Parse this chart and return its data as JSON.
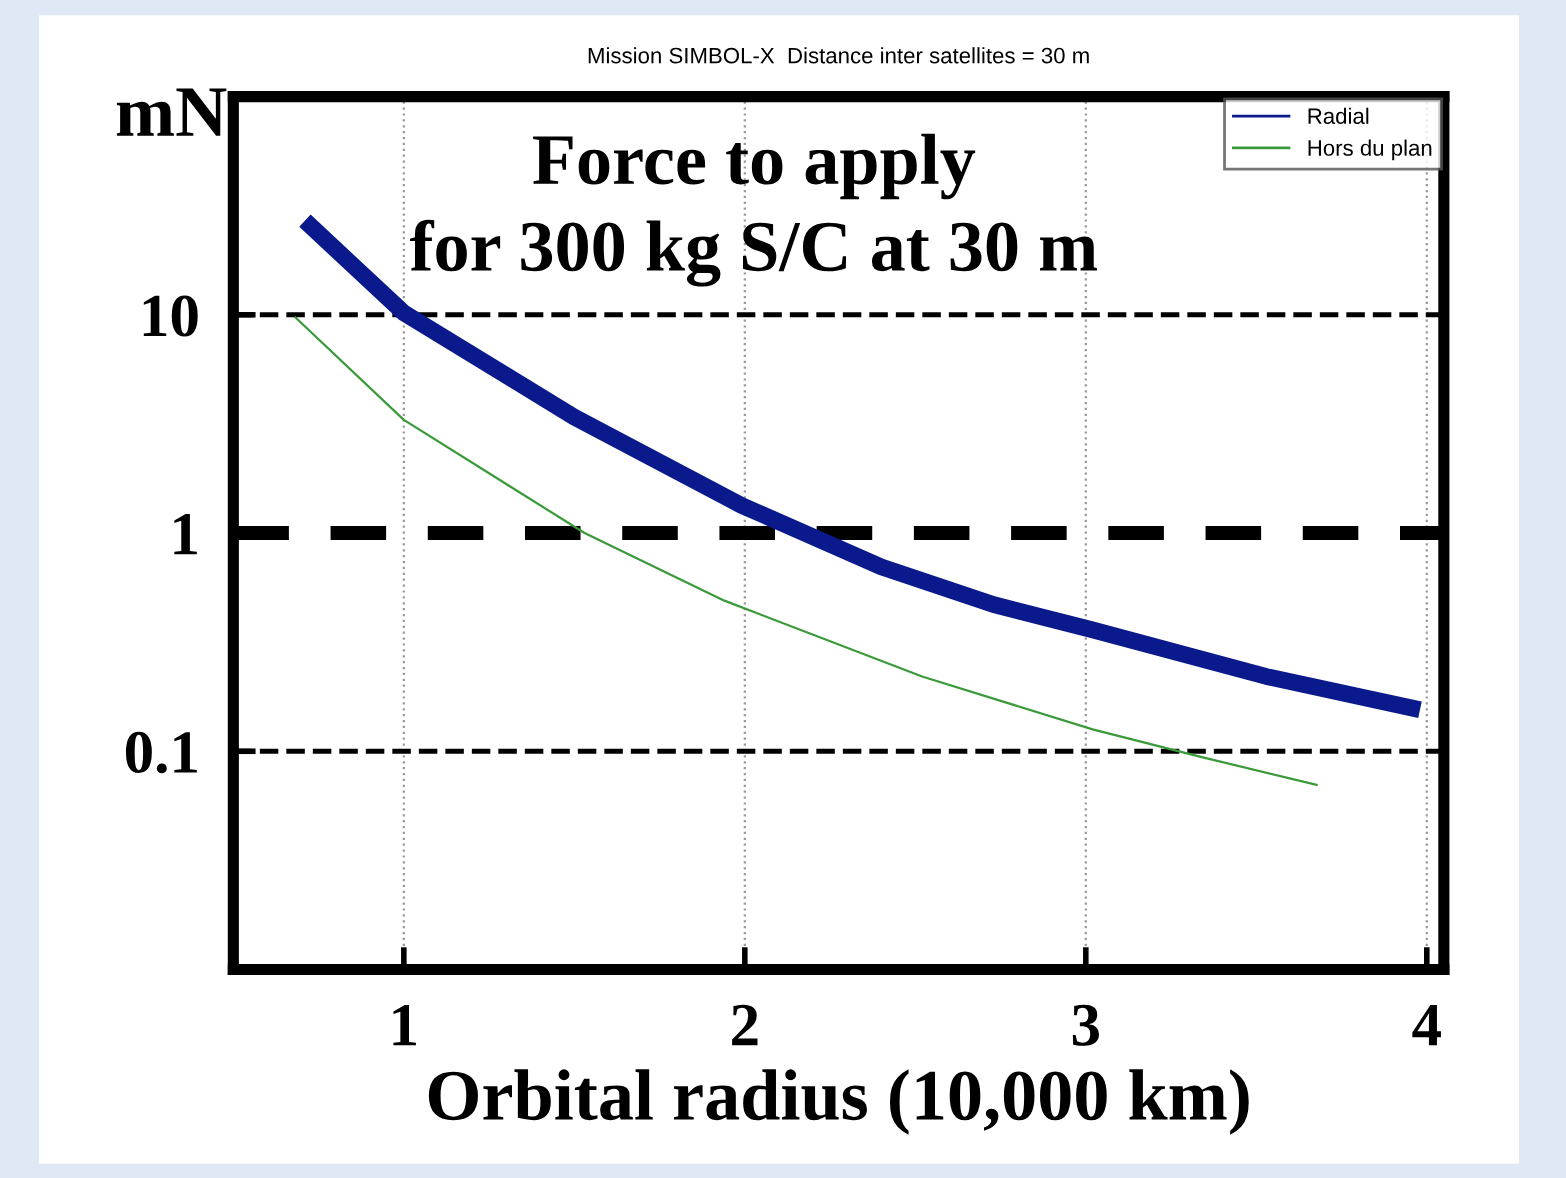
{
  "chart_data": {
    "type": "line",
    "title": "Mission SIMBOL-X  Distance inter satellites = 30 m",
    "xlabel": "Orbital radius (10,000 km)",
    "ylabel": "mN",
    "annotations": [
      "Force to apply\nfor 300 kg S/C at 30 m"
    ],
    "log": "y",
    "xlim": [
      0.5,
      4.05
    ],
    "xticks": [
      1,
      2,
      3,
      4
    ],
    "ylim": [
      0.01,
      100
    ],
    "yticks": [
      0.1,
      1,
      10
    ],
    "grid": "x",
    "legend": "top right",
    "line_style": "solid",
    "marker": "none",
    "ref_lines": [
      {
        "axis": "y",
        "value": 10,
        "line_style": "dashed",
        "color": "#000000"
      },
      {
        "axis": "y",
        "value": 1,
        "line_style": "dashed",
        "color": "#000000"
      },
      {
        "axis": "y",
        "value": 0.1,
        "line_style": "dashed",
        "color": "#000000"
      }
    ],
    "series": [
      {
        "name": "Radial",
        "color": "#0a1a8c",
        "x": [
          0.71,
          1.0,
          1.5,
          1.99,
          2.4,
          2.73,
          3.02,
          3.53,
          3.98
        ],
        "values": [
          27,
          10.2,
          3.4,
          1.34,
          0.7,
          0.47,
          0.36,
          0.22,
          0.155
        ]
      },
      {
        "name": "Hors du plan",
        "color": "#3a9a3a",
        "x": [
          0.68,
          1.0,
          1.53,
          1.94,
          2.52,
          3.02,
          3.34,
          3.68
        ],
        "values": [
          9.8,
          3.3,
          1.0,
          0.49,
          0.22,
          0.126,
          0.094,
          0.07
        ]
      }
    ]
  }
}
